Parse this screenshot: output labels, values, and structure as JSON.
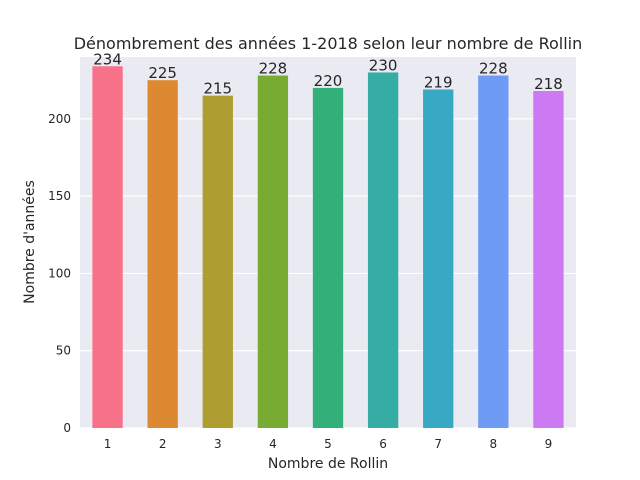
{
  "chart_data": {
    "type": "bar",
    "title": "Dénombrement des années 1-2018 selon leur nombre de Rollin",
    "xlabel": "Nombre de Rollin",
    "ylabel": "Nombre d'années",
    "categories": [
      "1",
      "2",
      "3",
      "4",
      "5",
      "6",
      "7",
      "8",
      "9"
    ],
    "values": [
      234,
      225,
      215,
      228,
      220,
      230,
      219,
      228,
      218
    ],
    "ylim": [
      0,
      240
    ],
    "yticks": [
      0,
      50,
      100,
      150,
      200
    ],
    "grid": true,
    "plot_background": "#EAEAF2",
    "colors": [
      "#F77189",
      "#DC8932",
      "#AE9D31",
      "#77AB31",
      "#33B07A",
      "#36ADA4",
      "#38A9C5",
      "#6E9BF4",
      "#CC7AF4"
    ]
  }
}
